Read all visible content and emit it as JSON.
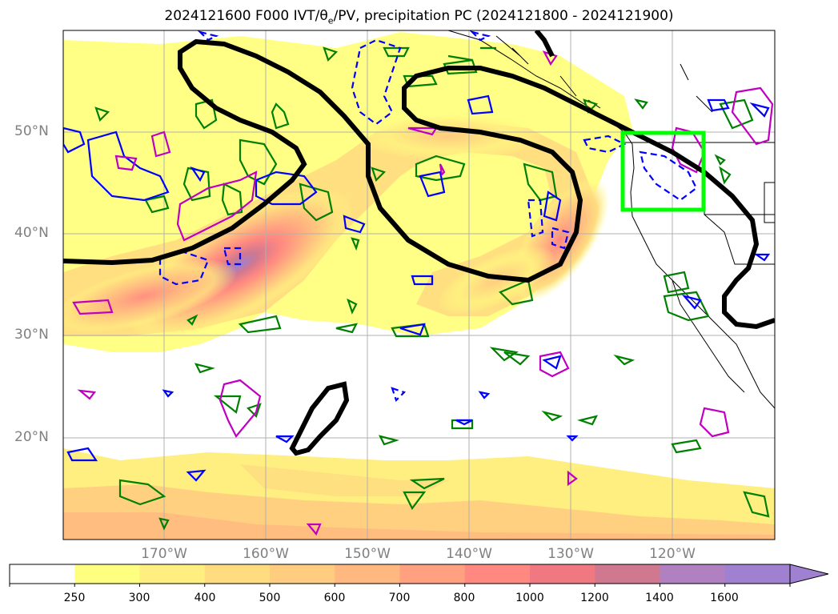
{
  "title": {
    "prefix": "2024121600 F000 IVT/",
    "theta_symbol": "θ",
    "theta_sub": "e",
    "suffix": "/PV, precipitation PC (2024121800 - 2024121900)"
  },
  "lat_labels": [
    "50°N",
    "40°N",
    "30°N",
    "20°N"
  ],
  "lon_labels": [
    "170°W",
    "160°W",
    "150°W",
    "140°W",
    "130°W",
    "120°W"
  ],
  "colorbar": {
    "ticks": [
      "250",
      "300",
      "400",
      "500",
      "600",
      "700",
      "800",
      "1000",
      "1200",
      "1400",
      "1600"
    ],
    "colors": [
      "#ffffff",
      "#ffff80",
      "#ffee80",
      "#ffdc80",
      "#ffcc80",
      "#ffb880",
      "#ffa080",
      "#ff8880",
      "#f07880",
      "#d07890",
      "#b080c0",
      "#a080d0"
    ],
    "extend": "max"
  },
  "colors": {
    "ivt_contour": "#000000",
    "theta_positive": "#008000",
    "theta_negative": "#0000ff",
    "pv": "#c000c0",
    "box": "#00ff00"
  }
}
